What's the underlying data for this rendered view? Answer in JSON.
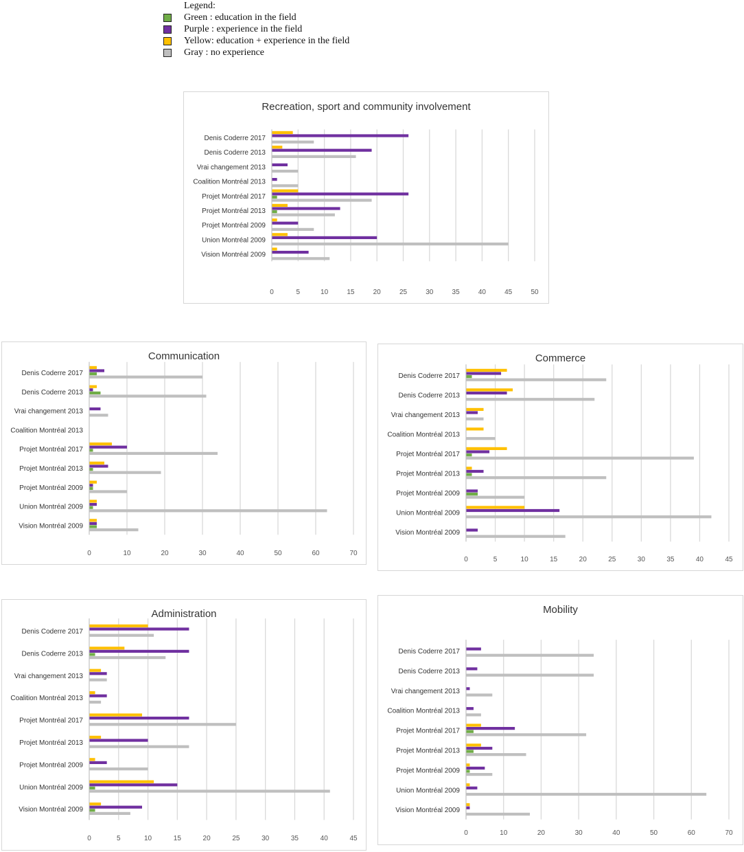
{
  "legend": {
    "title": "Legend:",
    "items": [
      {
        "key": "green",
        "label": "Green : education in the field",
        "color": "#70ad47"
      },
      {
        "key": "purple",
        "label": "Purple : experience in the field",
        "color": "#7030a0"
      },
      {
        "key": "yellow",
        "label": "Yellow: education + experience in the field",
        "color": "#ffc000"
      },
      {
        "key": "gray",
        "label": "Gray : no experience",
        "color": "#bfbfbf"
      }
    ]
  },
  "chart_data": [
    {
      "id": "recreation",
      "type": "bar",
      "orientation": "horizontal",
      "title": "Recreation, sport and community involvement",
      "categories": [
        "Denis Coderre 2017",
        "Denis Coderre 2013",
        "Vrai changement 2013",
        "Coalition Montréal 2013",
        "Projet Montréal 2017",
        "Projet Montréal 2013",
        "Projet Montréal 2009",
        "Union Montréal 2009",
        "Vision Montréal 2009"
      ],
      "xlim": [
        0,
        50
      ],
      "ticks": [
        0,
        5,
        10,
        15,
        20,
        25,
        30,
        35,
        40,
        45,
        50
      ],
      "series": [
        {
          "name": "yellow",
          "values": [
            4,
            2,
            0,
            0,
            5,
            3,
            1,
            3,
            1
          ]
        },
        {
          "name": "purple",
          "values": [
            26,
            19,
            3,
            1,
            26,
            13,
            5,
            20,
            7
          ]
        },
        {
          "name": "green",
          "values": [
            0,
            0,
            0,
            0,
            1,
            1,
            0,
            0,
            0
          ]
        },
        {
          "name": "gray",
          "values": [
            8,
            16,
            5,
            5,
            19,
            12,
            8,
            45,
            11
          ]
        }
      ]
    },
    {
      "id": "communication",
      "type": "bar",
      "orientation": "horizontal",
      "title": "Communication",
      "categories": [
        "Denis Coderre 2017",
        "Denis Coderre 2013",
        "Vrai changement 2013",
        "Coalition Montréal 2013",
        "Projet Montréal 2017",
        "Projet Montréal 2013",
        "Projet Montréal 2009",
        "Union Montréal 2009",
        "Vision Montréal 2009"
      ],
      "xlim": [
        0,
        70
      ],
      "ticks": [
        0,
        10,
        20,
        30,
        40,
        50,
        60,
        70
      ],
      "series": [
        {
          "name": "yellow",
          "values": [
            2,
            2,
            0,
            0,
            6,
            4,
            2,
            2,
            2
          ]
        },
        {
          "name": "purple",
          "values": [
            4,
            1,
            3,
            0,
            10,
            5,
            1,
            2,
            2
          ]
        },
        {
          "name": "green",
          "values": [
            2,
            3,
            0,
            0,
            1,
            1,
            1,
            1,
            2
          ]
        },
        {
          "name": "gray",
          "values": [
            30,
            31,
            5,
            0,
            34,
            19,
            10,
            63,
            13
          ]
        }
      ]
    },
    {
      "id": "commerce",
      "type": "bar",
      "orientation": "horizontal",
      "title": "Commerce",
      "categories": [
        "Denis Coderre 2017",
        "Denis Coderre 2013",
        "Vrai changement 2013",
        "Coalition Montréal 2013",
        "Projet Montréal 2017",
        "Projet Montréal 2013",
        "Projet Montréal 2009",
        "Union Montréal 2009",
        "Vision Montréal 2009"
      ],
      "xlim": [
        0,
        45
      ],
      "ticks": [
        0,
        5,
        10,
        15,
        20,
        25,
        30,
        35,
        40,
        45
      ],
      "series": [
        {
          "name": "yellow",
          "values": [
            7,
            8,
            3,
            3,
            7,
            1,
            0,
            10,
            0
          ]
        },
        {
          "name": "purple",
          "values": [
            6,
            7,
            2,
            0,
            4,
            3,
            2,
            16,
            2
          ]
        },
        {
          "name": "green",
          "values": [
            1,
            0,
            0,
            0,
            1,
            1,
            2,
            0,
            0
          ]
        },
        {
          "name": "gray",
          "values": [
            24,
            22,
            3,
            5,
            39,
            24,
            10,
            42,
            17
          ]
        }
      ]
    },
    {
      "id": "administration",
      "type": "bar",
      "orientation": "horizontal",
      "title": "Administration",
      "categories": [
        "Denis Coderre 2017",
        "Denis Coderre 2013",
        "Vrai changement 2013",
        "Coalition Montréal 2013",
        "Projet Montréal 2017",
        "Projet Montréal 2013",
        "Projet Montréal 2009",
        "Union Montréal 2009",
        "Vision Montréal 2009"
      ],
      "xlim": [
        0,
        45
      ],
      "ticks": [
        0,
        5,
        10,
        15,
        20,
        25,
        30,
        35,
        40,
        45
      ],
      "series": [
        {
          "name": "yellow",
          "values": [
            10,
            6,
            2,
            1,
            9,
            2,
            1,
            11,
            2
          ]
        },
        {
          "name": "purple",
          "values": [
            17,
            17,
            3,
            3,
            17,
            10,
            3,
            15,
            9
          ]
        },
        {
          "name": "green",
          "values": [
            0,
            1,
            0,
            0,
            0,
            0,
            0,
            1,
            1
          ]
        },
        {
          "name": "gray",
          "values": [
            11,
            13,
            3,
            2,
            25,
            17,
            10,
            41,
            7
          ]
        }
      ]
    },
    {
      "id": "mobility",
      "type": "bar",
      "orientation": "horizontal",
      "title": "Mobility",
      "categories": [
        "Denis Coderre 2017",
        "Denis Coderre 2013",
        "Vrai changement 2013",
        "Coalition Montréal 2013",
        "Projet Montréal 2017",
        "Projet Montréal 2013",
        "Projet Montréal 2009",
        "Union Montréal 2009",
        "Vision Montréal 2009"
      ],
      "xlim": [
        0,
        70
      ],
      "ticks": [
        0,
        10,
        20,
        30,
        40,
        50,
        60,
        70
      ],
      "series": [
        {
          "name": "yellow",
          "values": [
            0,
            0,
            0,
            0,
            4,
            4,
            1,
            1,
            1
          ]
        },
        {
          "name": "purple",
          "values": [
            4,
            3,
            1,
            2,
            13,
            7,
            5,
            3,
            1
          ]
        },
        {
          "name": "green",
          "values": [
            0,
            0,
            0,
            0,
            2,
            2,
            1,
            0,
            0
          ]
        },
        {
          "name": "gray",
          "values": [
            34,
            34,
            7,
            4,
            32,
            16,
            7,
            64,
            17
          ]
        }
      ]
    }
  ]
}
